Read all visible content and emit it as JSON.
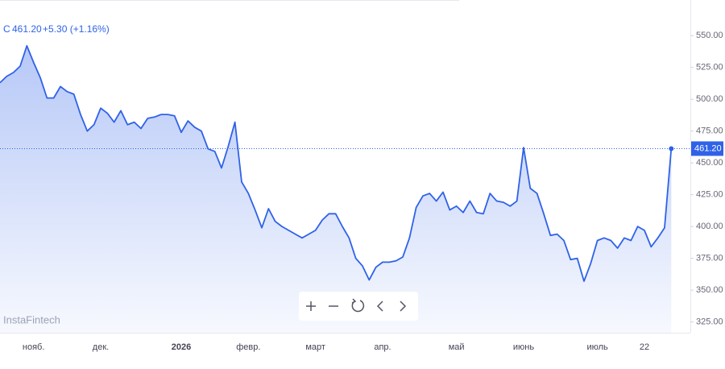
{
  "header": {
    "symbol": "C",
    "price": "461.20",
    "change": "+5.30 (+1.16%)"
  },
  "watermark": "InstaFintech",
  "chart_data": {
    "type": "area",
    "color": "#2f62e8",
    "grid": false,
    "categories": [
      null,
      null,
      null,
      null,
      null,
      "нояб.",
      null,
      null,
      null,
      null,
      null,
      null,
      null,
      null,
      null,
      "дек.",
      null,
      null,
      null,
      null,
      null,
      null,
      null,
      null,
      null,
      null,
      null,
      "2026",
      null,
      null,
      null,
      null,
      null,
      null,
      null,
      null,
      null,
      "февр.",
      null,
      null,
      null,
      null,
      null,
      null,
      null,
      null,
      null,
      "март",
      null,
      null,
      null,
      null,
      null,
      null,
      null,
      null,
      null,
      "апр.",
      null,
      null,
      null,
      null,
      null,
      null,
      null,
      null,
      null,
      null,
      "май",
      null,
      null,
      null,
      null,
      null,
      null,
      null,
      null,
      null,
      "июнь",
      null,
      null,
      null,
      null,
      null,
      null,
      null,
      null,
      null,
      null,
      "июль",
      null,
      null,
      null,
      null,
      null,
      null,
      "22",
      null,
      null,
      null,
      null
    ],
    "values": [
      513,
      518,
      521,
      526,
      542,
      529,
      517,
      501,
      501,
      510,
      506,
      504,
      488,
      475,
      480,
      493,
      489,
      482,
      491,
      480,
      482,
      477,
      485,
      486,
      488,
      488,
      487,
      474,
      483,
      478,
      475,
      461,
      459,
      446,
      463,
      482,
      435,
      426,
      413,
      399,
      414,
      404,
      400,
      397,
      394,
      391,
      394,
      397,
      405,
      410,
      410,
      400,
      391,
      375,
      369,
      358,
      368,
      372,
      372,
      373,
      376,
      391,
      415,
      424,
      426,
      420,
      427,
      413,
      416,
      411,
      420,
      411,
      410,
      426,
      420,
      419,
      416,
      420,
      462,
      430,
      426,
      410,
      393,
      394,
      389,
      374,
      375,
      357,
      371,
      389,
      391,
      389,
      383,
      391,
      389,
      400,
      397,
      384,
      391,
      399,
      461.2
    ],
    "ylim": [
      316.5,
      578
    ],
    "yticks": [
      {
        "value": 325,
        "label": "325.00"
      },
      {
        "value": 350,
        "label": "350.00"
      },
      {
        "value": 375,
        "label": "375.00"
      },
      {
        "value": 400,
        "label": "400.00"
      },
      {
        "value": 425,
        "label": "425.00"
      },
      {
        "value": 450,
        "label": "450.00"
      },
      {
        "value": 475,
        "label": "475.00"
      },
      {
        "value": 500,
        "label": "500.00"
      },
      {
        "value": 525,
        "label": "525.00"
      },
      {
        "value": 550,
        "label": "550.00"
      }
    ]
  }
}
